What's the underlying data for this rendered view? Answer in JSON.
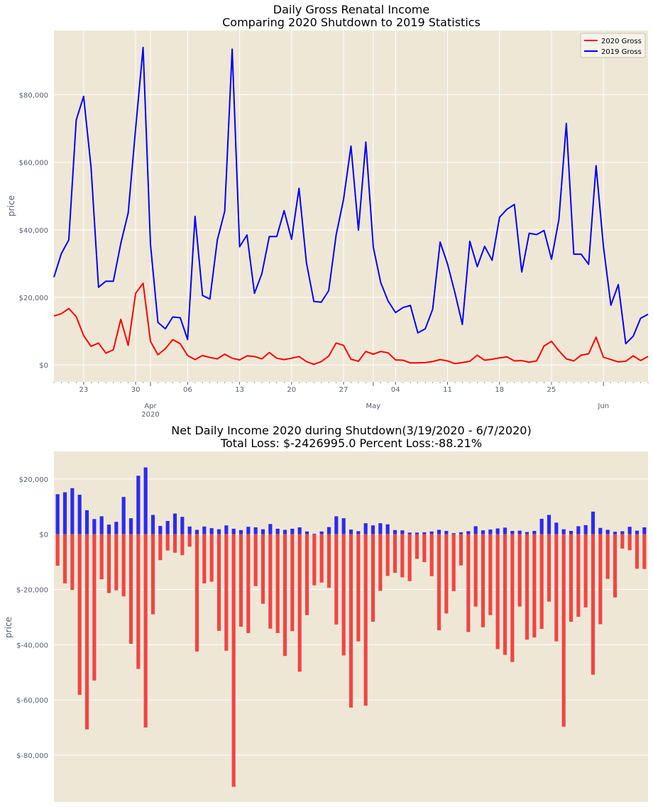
{
  "chart_data": [
    {
      "type": "line",
      "title": "Daily Gross Renatal Income",
      "subtitle": "Comparing 2020 Shutdown to 2019 Statistics",
      "xlabel": "",
      "ylabel": "price",
      "x_start": "2020-03-19",
      "x_end": "2020-06-07",
      "x_tick_labels": [
        {
          "date": "2020-03-23",
          "label": "23"
        },
        {
          "date": "2020-03-30",
          "label": "30"
        },
        {
          "date": "2020-04-01",
          "label": "Apr",
          "sublabel": "2020"
        },
        {
          "date": "2020-04-06",
          "label": "06"
        },
        {
          "date": "2020-04-13",
          "label": "13"
        },
        {
          "date": "2020-04-20",
          "label": "20"
        },
        {
          "date": "2020-04-27",
          "label": "27"
        },
        {
          "date": "2020-05-01",
          "label": "May"
        },
        {
          "date": "2020-05-04",
          "label": "04"
        },
        {
          "date": "2020-05-11",
          "label": "11"
        },
        {
          "date": "2020-05-18",
          "label": "18"
        },
        {
          "date": "2020-05-25",
          "label": "25"
        },
        {
          "date": "2020-06-01",
          "label": "Jun"
        }
      ],
      "yticks": [
        {
          "value": 0,
          "label": "$0"
        },
        {
          "value": 20000,
          "label": "$20,000"
        },
        {
          "value": 40000,
          "label": "$40,000"
        },
        {
          "value": 60000,
          "label": "$60,000"
        },
        {
          "value": 80000,
          "label": "$80,000"
        }
      ],
      "ylim": [
        -5000,
        99000
      ],
      "grid": true,
      "legend_position": "top-right",
      "series": [
        {
          "name": "2020 Gross",
          "color": "#ff0000",
          "values": [
            14500,
            15200,
            16700,
            14300,
            8700,
            5500,
            6500,
            3500,
            4500,
            13500,
            5800,
            21200,
            24200,
            7000,
            3000,
            4800,
            7500,
            6300,
            2800,
            1600,
            2800,
            2200,
            1800,
            3200,
            2000,
            1500,
            2700,
            2500,
            1800,
            3700,
            2000,
            1600,
            2000,
            2500,
            1000,
            200,
            1000,
            2600,
            6500,
            5800,
            1700,
            1100,
            4000,
            3200,
            4000,
            3600,
            1500,
            1400,
            600,
            600,
            700,
            1000,
            1600,
            1200,
            400,
            700,
            1100,
            2900,
            1400,
            1700,
            2100,
            2400,
            1200,
            1300,
            800,
            1200,
            5600,
            7000,
            4200,
            1800,
            1200,
            2900,
            3300,
            8200,
            2300,
            1600,
            900,
            1100,
            2700,
            1300,
            2500
          ]
        },
        {
          "name": "2019 Gross",
          "color": "#0000ff",
          "values": [
            26000,
            33000,
            37000,
            72500,
            79500,
            58500,
            23000,
            24800,
            24800,
            36000,
            45000,
            70000,
            94000,
            35700,
            12600,
            10700,
            14200,
            14000,
            7500,
            44000,
            20600,
            19500,
            37000,
            45500,
            93500,
            35000,
            38500,
            21200,
            27000,
            38000,
            38000,
            45700,
            37200,
            52300,
            30300,
            18800,
            18600,
            22000,
            38500,
            49000,
            64800,
            39900,
            66000,
            34900,
            24400,
            18900,
            15500,
            17000,
            17600,
            9500,
            10700,
            16500,
            36400,
            29900,
            21300,
            12000,
            36600,
            29100,
            35100,
            31000,
            43700,
            46100,
            47500,
            27500,
            39000,
            38600,
            39800,
            31300,
            43000,
            71500,
            32800,
            32800,
            29800,
            59000,
            35000,
            17700,
            23800,
            6300,
            8500,
            13800,
            15000
          ]
        }
      ]
    },
    {
      "type": "bar",
      "title": "Net Daily Income 2020 during Shutdown(3/19/2020 - 6/7/2020)",
      "subtitle": "Total Loss: $-2426995.0 Percent Loss:-88.21%",
      "xlabel": "",
      "ylabel": "price",
      "yticks": [
        {
          "value": 20000,
          "label": "$20,000"
        },
        {
          "value": 0,
          "label": "$0"
        },
        {
          "value": -20000,
          "label": "$-20,000"
        },
        {
          "value": -40000,
          "label": "$-40,000"
        },
        {
          "value": -60000,
          "label": "$-60,000"
        },
        {
          "value": -80000,
          "label": "$-80,000"
        }
      ],
      "ylim": [
        -97000,
        30000
      ],
      "grid": true,
      "series": [
        {
          "name": "",
          "color": "#2b2bf0",
          "values": [
            14500,
            15200,
            16700,
            14300,
            8700,
            5500,
            6500,
            3500,
            4500,
            13500,
            5800,
            21200,
            24200,
            7000,
            3000,
            4800,
            7500,
            6300,
            2800,
            1600,
            2800,
            2200,
            1800,
            3200,
            2000,
            1500,
            2700,
            2500,
            1800,
            3700,
            2000,
            1600,
            2000,
            2500,
            1000,
            200,
            1000,
            2600,
            6500,
            5800,
            1700,
            1100,
            4000,
            3200,
            4000,
            3600,
            1500,
            1400,
            600,
            600,
            700,
            1000,
            1600,
            1200,
            400,
            700,
            1100,
            2900,
            1400,
            1700,
            2100,
            2400,
            1200,
            1300,
            800,
            1200,
            5600,
            7000,
            4200,
            1800,
            1200,
            2900,
            3300,
            8200,
            2300,
            1600,
            900,
            1100,
            2700,
            1300,
            2500
          ]
        },
        {
          "name": "",
          "color": "#f04545",
          "values": [
            -11400,
            -17800,
            -20200,
            -58200,
            -70700,
            -53000,
            -16300,
            -21300,
            -20300,
            -22500,
            -39700,
            -48800,
            -70000,
            -29000,
            -9400,
            -5900,
            -6700,
            -7600,
            -4500,
            -42500,
            -17800,
            -17200,
            -35000,
            -42200,
            -91500,
            -33500,
            -35800,
            -18800,
            -25200,
            -34200,
            -35800,
            -44100,
            -35100,
            -49800,
            -29300,
            -18500,
            -17500,
            -19400,
            -32700,
            -43900,
            -62800,
            -38800,
            -62100,
            -31700,
            -20500,
            -15100,
            -14000,
            -15600,
            -17000,
            -8900,
            -10100,
            -15200,
            -34800,
            -28700,
            -20600,
            -11300,
            -35400,
            -26200,
            -33700,
            -29300,
            -41600,
            -43700,
            -46300,
            -26200,
            -38200,
            -37400,
            -34300,
            -24400,
            -38800,
            -69700,
            -31700,
            -29900,
            -26500,
            -50900,
            -32600,
            -16200,
            -22900,
            -5200,
            -5800,
            -12500,
            -12600
          ]
        }
      ]
    }
  ]
}
